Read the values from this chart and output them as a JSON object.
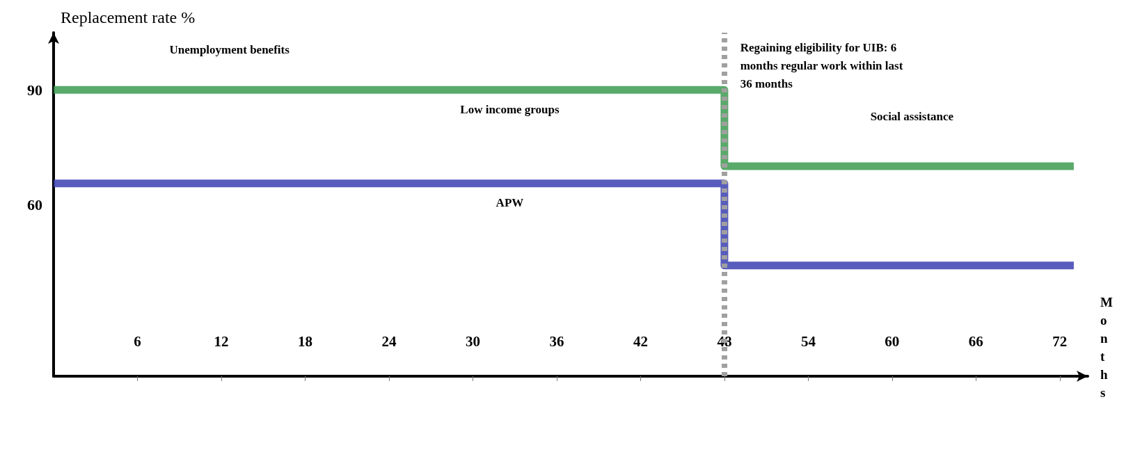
{
  "chart_data": {
    "type": "step",
    "ylabel": "Replacement rate %",
    "xlabel": "Months",
    "xlim": [
      0,
      74
    ],
    "xticks": [
      6,
      12,
      18,
      24,
      30,
      36,
      42,
      48,
      54,
      60,
      66,
      72
    ],
    "ylim": [
      15,
      105
    ],
    "yticks": [
      60,
      90
    ],
    "series": [
      {
        "name": "Low income groups",
        "color": "#3c9a50",
        "x": [
          0,
          48,
          73
        ],
        "values": [
          90,
          70,
          70
        ]
      },
      {
        "name": "APW",
        "color": "#3b3fb0",
        "x": [
          0,
          48,
          73
        ],
        "values": [
          65.5,
          44,
          44
        ]
      }
    ],
    "ref_lines": [
      {
        "axis": "x",
        "value": 48,
        "color": "#a0a0a0",
        "line_style": "dashed"
      }
    ],
    "annotations": [
      "Unemployment benefits",
      "Social assistance",
      "Regaining eligibility for UIB: 6 months regular work within last 36 months"
    ],
    "grid": false,
    "legend": false,
    "marker": "none",
    "line_style": "solid"
  }
}
